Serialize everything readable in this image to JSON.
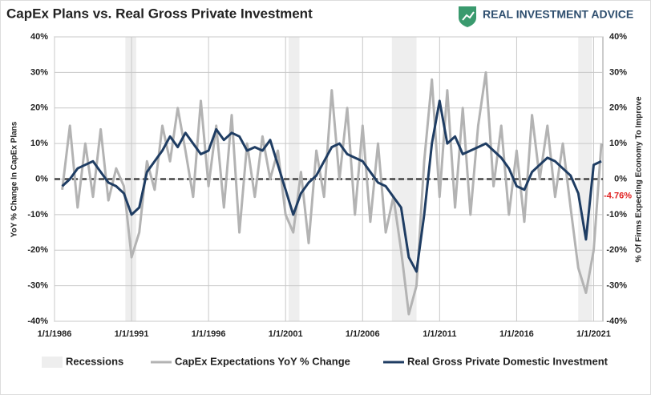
{
  "chart_data": {
    "type": "line",
    "title": "CapEx Plans vs. Real Gross Private Investment",
    "brand": "REAL INVESTMENT ADVICE",
    "y_label": "YoY % Change In CapEx Plans",
    "y2_label": "% Of Firms Expecting Economy To Improve",
    "recessions_label": "Recessions",
    "recessions": [
      [
        1990.6,
        1991.3
      ],
      [
        2001.2,
        2001.9
      ],
      [
        2007.9,
        2009.5
      ],
      [
        2020.0,
        2020.9
      ]
    ],
    "x": [
      1986.5,
      1987,
      1987.5,
      1988,
      1988.5,
      1989,
      1989.5,
      1990,
      1990.5,
      1991,
      1991.5,
      1992,
      1992.5,
      1993,
      1993.5,
      1994,
      1994.5,
      1995,
      1995.5,
      1996,
      1996.5,
      1997,
      1997.5,
      1998,
      1998.5,
      1999,
      1999.5,
      2000,
      2000.5,
      2001,
      2001.5,
      2002,
      2002.5,
      2003,
      2003.5,
      2004,
      2004.5,
      2005,
      2005.5,
      2006,
      2006.5,
      2007,
      2007.5,
      2008,
      2008.5,
      2009,
      2009.5,
      2010,
      2010.5,
      2011,
      2011.5,
      2012,
      2012.5,
      2013,
      2013.5,
      2014,
      2014.5,
      2015,
      2015.5,
      2016,
      2016.5,
      2017,
      2017.5,
      2018,
      2018.5,
      2019,
      2019.5,
      2020,
      2020.5,
      2021,
      2021.5
    ],
    "series": [
      {
        "name": "CapEx Expectations YoY % Change",
        "color": "#b3b3b3",
        "width": 3,
        "values": [
          -3,
          15,
          -8,
          10,
          -5,
          14,
          -6,
          3,
          -2,
          -22,
          -15,
          5,
          -3,
          15,
          5,
          20,
          8,
          -5,
          22,
          -2,
          15,
          -8,
          18,
          -15,
          10,
          -5,
          12,
          0,
          8,
          -10,
          -15,
          2,
          -18,
          8,
          -5,
          25,
          0,
          20,
          -10,
          15,
          -12,
          10,
          -15,
          -5,
          -20,
          -38,
          -30,
          5,
          28,
          -5,
          25,
          -8,
          20,
          -10,
          15,
          30,
          -2,
          15,
          -10,
          8,
          -12,
          18,
          0,
          15,
          -5,
          10,
          -8,
          -25,
          -32,
          -20,
          10
        ]
      },
      {
        "name": "Real Gross Private Domestic Investment",
        "color": "#1f3d63",
        "width": 3,
        "values": [
          -2,
          0,
          3,
          4,
          5,
          2,
          -1,
          -2,
          -4,
          -10,
          -8,
          2,
          5,
          8,
          12,
          9,
          13,
          10,
          7,
          8,
          14,
          11,
          13,
          12,
          8,
          9,
          8,
          11,
          4,
          -3,
          -10,
          -4,
          -1,
          1,
          5,
          9,
          10,
          7,
          6,
          5,
          2,
          -1,
          -2,
          -5,
          -8,
          -22,
          -26,
          -10,
          10,
          22,
          10,
          12,
          7,
          8,
          9,
          10,
          8,
          6,
          3,
          -2,
          -3,
          2,
          4,
          6,
          5,
          3,
          1,
          -4,
          -17,
          4,
          5
        ]
      }
    ],
    "annotation": {
      "value": -4.76,
      "label": "-4.76%",
      "color": "#e02020"
    },
    "xlim": [
      1986,
      2021.6
    ],
    "xticks": [
      {
        "value": 1986,
        "label": "1/1/1986"
      },
      {
        "value": 1991,
        "label": "1/1/1991"
      },
      {
        "value": 1996,
        "label": "1/1/1996"
      },
      {
        "value": 2001,
        "label": "1/1/2001"
      },
      {
        "value": 2006,
        "label": "1/1/2006"
      },
      {
        "value": 2011,
        "label": "1/1/2011"
      },
      {
        "value": 2016,
        "label": "1/1/2016"
      },
      {
        "value": 2021,
        "label": "1/1/2021"
      }
    ],
    "ylim": [
      -40,
      40
    ],
    "yticks": [
      {
        "value": -40,
        "label": "-40%"
      },
      {
        "value": -30,
        "label": "-30%"
      },
      {
        "value": -20,
        "label": "-20%"
      },
      {
        "value": -10,
        "label": "-10%"
      },
      {
        "value": 0,
        "label": "0%"
      },
      {
        "value": 10,
        "label": "10%"
      },
      {
        "value": 20,
        "label": "20%"
      },
      {
        "value": 30,
        "label": "30%"
      },
      {
        "value": 40,
        "label": "40%"
      }
    ],
    "y2lim": [
      -40,
      40
    ],
    "y2ticks": [
      {
        "value": -40,
        "label": "-40%"
      },
      {
        "value": -30,
        "label": "-30%"
      },
      {
        "value": -20,
        "label": "-20%"
      },
      {
        "value": -10,
        "label": "-10%"
      },
      {
        "value": 0,
        "label": "0%"
      },
      {
        "value": 10,
        "label": "10%"
      },
      {
        "value": 20,
        "label": "20%"
      },
      {
        "value": 30,
        "label": "30%"
      },
      {
        "value": 40,
        "label": "40%"
      }
    ],
    "grid": true
  }
}
